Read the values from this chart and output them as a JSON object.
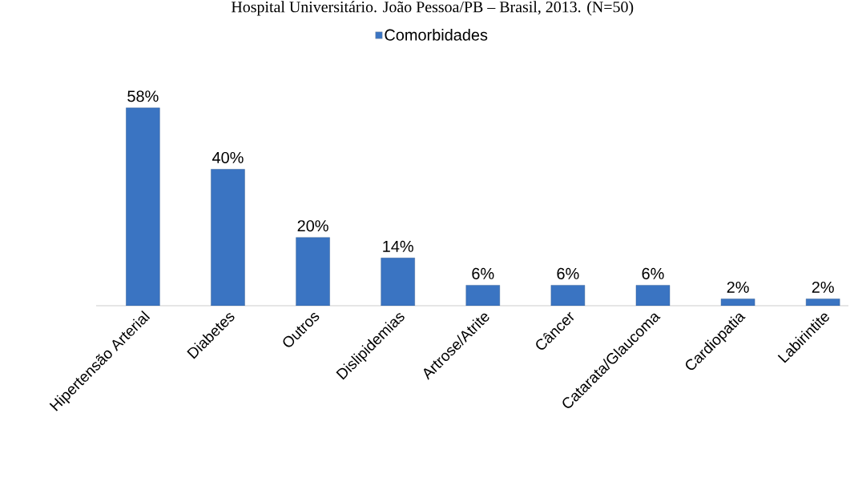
{
  "chart_data": {
    "type": "bar",
    "title": "Hospital Universitário. João Pessoa/PB – Brasil, 2013. (N=50)",
    "categories": [
      "Hipertensão Arterial",
      "Diabetes",
      "Outros",
      "Dislipidemias",
      "Artrose/Atrite",
      "Câncer",
      "Catarata/Glaucoma",
      "Cardiopatia",
      "Labirintite"
    ],
    "series": [
      {
        "name": "Comorbidades",
        "color": "#3a74c2",
        "values": [
          58,
          40,
          20,
          14,
          6,
          6,
          6,
          2,
          2
        ],
        "value_labels": [
          "58%",
          "40%",
          "20%",
          "14%",
          "6%",
          "6%",
          "6%",
          "2%",
          "2%"
        ]
      }
    ],
    "legend": "top"
  }
}
